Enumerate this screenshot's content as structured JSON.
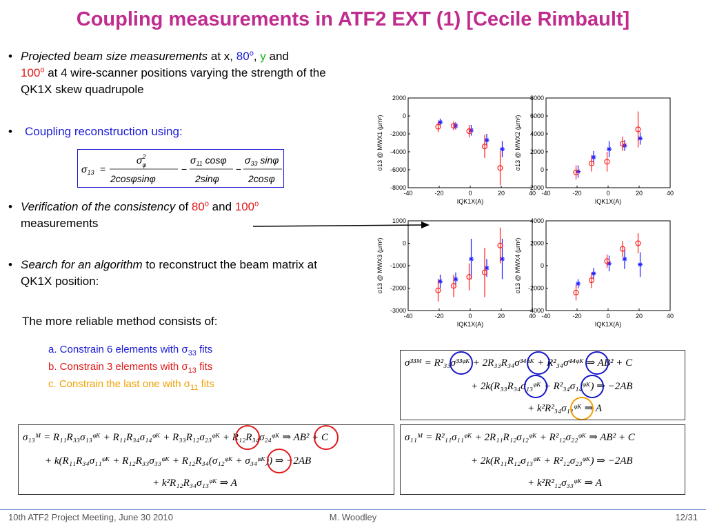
{
  "title": "Coupling measurements in ATF2 EXT (1) [Cecile Rimbault]",
  "bullets": {
    "b1": {
      "italic": "Projected beam size measurements",
      "t1": " at x, ",
      "v80": "80",
      "sup_o": "o",
      "comma": ", ",
      "y": "y",
      "and": " and",
      "v100": "100",
      "rest": " at 4 wire-scanner positions varying the strength of the QK1X skew quadrupole"
    },
    "b2": {
      "text": "Coupling reconstruction using:"
    },
    "b3": {
      "italic": "Verification of the consistency",
      "of": " of ",
      "v80": "80",
      "and": " and ",
      "v100": "100",
      "rest": " measurements"
    },
    "b4": {
      "italic": "Search for an algorithm",
      "rest": " to reconstruct the beam matrix at QK1X position:"
    },
    "reliable": "The more reliable method consists of:"
  },
  "methods": {
    "a": "a. Constrain 6 elements with σ",
    "a_sub": "33",
    "b": "b. Constrain 3 elements with σ",
    "b_sub": "13",
    "c": "c. Constrain the last one with σ",
    "c_sub": "11",
    "fits": " fits"
  },
  "formula": {
    "lhs": "σ",
    "lhs_sub": "13",
    "eq": "=",
    "num1": "σ",
    "num1_sup": "2",
    "num1_sub": "φ",
    "den1": "2cosφsinφ",
    "minus": "−",
    "num2": "σ",
    "num2_sub": "11",
    "num2_tail": " cosφ",
    "den2": "2sinφ",
    "num3": "σ",
    "num3_sub": "33",
    "num3_tail": " sinφ",
    "den3": "2cosφ"
  },
  "equations": {
    "s33": {
      "l1": "σ³³ᴹ = R²₃₃σ³³ᵠᴷ + 2R₃₃R₃₄σ³⁴ᵠᴷ + R²₃₄σ⁴⁴ᵠᴷ ⇒ AB² + C",
      "l2": "+ 2k(R₃₃R₃₄σ₁₃ᵠᴷ + R²₃₄σ₁₄ᵠᴷ) ⇒ −2AB",
      "l3": "+ k²R²₃₄σ₁₁ᵠᴷ ⇒ A"
    },
    "s13": {
      "l1": "σ₁₃ᴹ = R₁₁R₃₃σ₁₃ᵠᴷ + R₁₁R₃₄σ₁₄ᵠᴷ + R₃₃R₁₂σ₂₃ᵠᴷ + R₁₂R₃₄σ₂₄ᵠᴷ ⇒ AB² + C",
      "l2": "+ k(R₁₁R₃₄σ₁₁ᵠᴷ + R₁₂R₃₃σ₃₃ᵠᴷ + R₁₂R₃₄(σ₁₂ᵠᴷ + σ₃₄ᵠᴷ)) ⇒ −2AB",
      "l3": "+ k²R₁₂R₃₄σ₁₃ᵠᴷ ⇒ A"
    },
    "s11": {
      "l1": "σ₁₁ᴹ = R²₁₁σ₁₁ᵠᴷ + 2R₁₁R₁₂σ₁₂ᵠᴷ + R²₁₂σ₂₂ᵠᴷ ⇒ AB² + C",
      "l2": "+ 2k(R₁₁R₁₂σ₁₃ᵠᴷ + R²₁₂σ₂₃ᵠᴷ) ⇒ −2AB",
      "l3": "+ k²R²₁₂σ₃₃ᵠᴷ ⇒ A"
    }
  },
  "footer": {
    "left": "10th ATF2 Project Meeting, June 30 2010",
    "center": "M. Woodley",
    "right": "12/31"
  },
  "colors": {
    "title": "#c02c8e",
    "blue_text": "#1a1ad6",
    "red_text": "#e01818",
    "green_text": "#18b818",
    "orange_text": "#f0a000",
    "blue_circle": "#1414c8",
    "red_circle": "#e01818",
    "orange_circle": "#f0a000",
    "series_blue": "#2020ff",
    "series_red": "#ff2020"
  },
  "chart_data": [
    {
      "type": "scatter",
      "ylabel": "σ13 @ MWX1 (μm²)",
      "xlabel": "IQK1X(A)",
      "xlim": [
        -40,
        40
      ],
      "ylim": [
        -8000,
        2000
      ],
      "xticks": [
        -40,
        -20,
        0,
        20,
        40
      ],
      "yticks": [
        -8000,
        -6000,
        -4000,
        -2000,
        0,
        2000
      ],
      "series": [
        {
          "marker": "star",
          "color": "blue",
          "x": [
            -20,
            -10,
            0,
            10,
            20
          ],
          "y": [
            -700,
            -1100,
            -1600,
            -2700,
            -3700
          ],
          "err": [
            400,
            400,
            600,
            700,
            900
          ]
        },
        {
          "marker": "circle",
          "color": "red",
          "x": [
            -20,
            -10,
            0,
            10,
            20
          ],
          "y": [
            -1200,
            -1100,
            -1700,
            -3400,
            -5800
          ],
          "err": [
            600,
            500,
            700,
            1300,
            1900
          ]
        }
      ]
    },
    {
      "type": "scatter",
      "ylabel": "σ13 @ MWX2 (μm²)",
      "xlabel": "IQK1X(A)",
      "xlim": [
        -40,
        40
      ],
      "ylim": [
        -2000,
        8000
      ],
      "xticks": [
        -40,
        -20,
        0,
        20,
        40
      ],
      "yticks": [
        -2000,
        0,
        2000,
        4000,
        6000,
        8000
      ],
      "series": [
        {
          "marker": "star",
          "color": "blue",
          "x": [
            -20,
            -10,
            0,
            10,
            20
          ],
          "y": [
            -200,
            1400,
            2300,
            2700,
            3500
          ],
          "err": [
            700,
            700,
            900,
            600,
            700
          ]
        },
        {
          "marker": "circle",
          "color": "red",
          "x": [
            -20,
            -10,
            0,
            10,
            20
          ],
          "y": [
            -300,
            700,
            900,
            2900,
            4500
          ],
          "err": [
            800,
            900,
            1100,
            800,
            2000
          ]
        }
      ]
    },
    {
      "type": "scatter",
      "ylabel": "σ13 @ MWX3 (μm²)",
      "xlabel": "IQK1X(A)",
      "xlim": [
        -40,
        40
      ],
      "ylim": [
        -3000,
        1000
      ],
      "xticks": [
        -40,
        -20,
        0,
        20,
        40
      ],
      "yticks": [
        -3000,
        -2000,
        -1000,
        0,
        1000
      ],
      "series": [
        {
          "marker": "star",
          "color": "blue",
          "x": [
            -20,
            -10,
            0,
            10,
            20
          ],
          "y": [
            -1700,
            -1600,
            -700,
            -1100,
            -700
          ],
          "err": [
            300,
            300,
            900,
            400,
            900
          ]
        },
        {
          "marker": "circle",
          "color": "red",
          "x": [
            -20,
            -10,
            0,
            10,
            20
          ],
          "y": [
            -2100,
            -1900,
            -1500,
            -1300,
            -100
          ],
          "err": [
            500,
            500,
            600,
            1100,
            800
          ]
        }
      ]
    },
    {
      "type": "scatter",
      "ylabel": "σ13 @ MWX4 (μm²)",
      "xlabel": "IQK1X(A)",
      "xlim": [
        -40,
        40
      ],
      "ylim": [
        -4000,
        4000
      ],
      "xticks": [
        -40,
        -20,
        0,
        20,
        40
      ],
      "yticks": [
        -4000,
        -2000,
        0,
        2000,
        4000
      ],
      "series": [
        {
          "marker": "star",
          "color": "blue",
          "x": [
            -20,
            -10,
            0,
            10,
            20
          ],
          "y": [
            -1600,
            -700,
            200,
            600,
            100
          ],
          "err": [
            400,
            500,
            700,
            900,
            1100
          ]
        },
        {
          "marker": "circle",
          "color": "red",
          "x": [
            -20,
            -10,
            0,
            10,
            20
          ],
          "y": [
            -2400,
            -1300,
            400,
            1500,
            2000
          ],
          "err": [
            700,
            700,
            600,
            700,
            900
          ]
        }
      ]
    }
  ]
}
